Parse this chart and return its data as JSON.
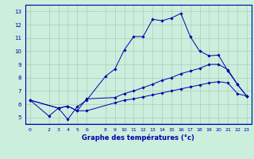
{
  "xlabel": "Graphe des températures (°c)",
  "background_color": "#cceedd",
  "line_color": "#0000aa",
  "grid_color": "#aaccbb",
  "xlim": [
    -0.5,
    23.5
  ],
  "ylim": [
    4.5,
    13.5
  ],
  "xticks": [
    0,
    2,
    3,
    4,
    5,
    6,
    8,
    9,
    10,
    11,
    12,
    13,
    14,
    15,
    16,
    17,
    18,
    19,
    20,
    21,
    22,
    23
  ],
  "yticks": [
    5,
    6,
    7,
    8,
    9,
    10,
    11,
    12,
    13
  ],
  "series": [
    {
      "x": [
        0,
        2,
        3,
        4,
        5,
        6,
        8,
        9,
        10,
        11,
        12,
        13,
        14,
        15,
        16,
        17,
        18,
        19,
        20,
        21,
        22,
        23
      ],
      "y": [
        6.3,
        5.1,
        5.7,
        4.85,
        5.8,
        6.3,
        8.1,
        8.65,
        10.1,
        11.1,
        11.1,
        12.4,
        12.3,
        12.5,
        12.85,
        11.1,
        10.0,
        9.65,
        9.7,
        8.5,
        7.5,
        6.6
      ]
    },
    {
      "x": [
        0,
        3,
        4,
        5,
        6,
        9,
        10,
        11,
        12,
        13,
        14,
        15,
        16,
        17,
        18,
        19,
        20,
        21,
        22,
        23
      ],
      "y": [
        6.3,
        5.7,
        5.85,
        5.5,
        6.4,
        6.5,
        6.8,
        7.0,
        7.25,
        7.5,
        7.8,
        8.0,
        8.3,
        8.5,
        8.7,
        9.0,
        9.0,
        8.6,
        7.5,
        6.6
      ]
    },
    {
      "x": [
        0,
        3,
        4,
        5,
        6,
        9,
        10,
        11,
        12,
        13,
        14,
        15,
        16,
        17,
        18,
        19,
        20,
        21,
        22,
        23
      ],
      "y": [
        6.3,
        5.7,
        5.85,
        5.5,
        5.5,
        6.1,
        6.3,
        6.4,
        6.55,
        6.7,
        6.85,
        7.0,
        7.15,
        7.3,
        7.45,
        7.6,
        7.7,
        7.6,
        6.8,
        6.6
      ]
    }
  ]
}
